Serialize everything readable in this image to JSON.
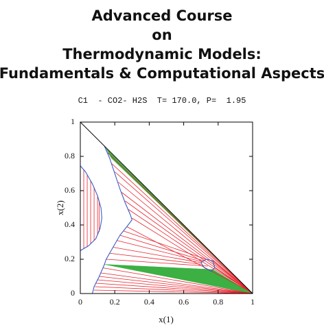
{
  "chart_data": {
    "type": "phase-diagram",
    "title": [
      "Advanced Course",
      "on",
      "Thermodynamic Models:",
      "Fundamentals & Computational Aspects"
    ],
    "subtitle": "C1  - CO2- H2S  T= 170.0, P=  1.95",
    "xlabel": "x(1)",
    "ylabel": "x(2)",
    "xlim": [
      0,
      1
    ],
    "ylim": [
      0,
      1
    ],
    "xticks": [
      0,
      0.2,
      0.4,
      0.6,
      0.8,
      1
    ],
    "yticks": [
      0,
      0.2,
      0.4,
      0.6,
      0.8,
      1
    ],
    "regions": {
      "color": "#3cb043",
      "polygons": [
        {
          "x": [
            0.14,
            0.77,
            1
          ],
          "y": [
            0.17,
            0.14,
            0
          ]
        },
        {
          "x": [
            0.15,
            0.18,
            1
          ],
          "y": [
            0.845,
            0.79,
            0
          ]
        }
      ]
    },
    "tie_lines": {
      "color": "#e8202a",
      "x1": [
        0.02,
        0.04,
        0.06,
        0.08,
        0.1,
        0.11,
        0.16,
        0.18,
        0.2,
        0.22,
        0.24,
        0.26,
        0.28,
        0.3,
        0.27,
        0.25,
        0.23,
        0.21,
        0.19,
        0.17,
        0.15,
        0.13,
        0.12,
        0.11,
        0.1,
        0.09,
        0.085,
        0.08,
        0.78,
        0.77
      ],
      "y1": [
        0.72,
        0.69,
        0.66,
        0.62,
        0.57,
        0.54,
        0.82,
        0.76,
        0.71,
        0.65,
        0.59,
        0.54,
        0.49,
        0.44,
        0.39,
        0.365,
        0.34,
        0.31,
        0.27,
        0.235,
        0.2,
        0.15,
        0.12,
        0.1,
        0.08,
        0.06,
        0.04,
        0.02,
        0.15,
        0.19
      ],
      "x2": [
        0.02,
        0.04,
        0.06,
        0.08,
        0.1,
        0.11,
        0.96,
        0.965,
        0.97,
        0.975,
        0.98,
        0.98,
        0.985,
        0.99,
        0.99,
        0.73,
        0.72,
        0.71,
        0.7,
        0.71,
        0.74,
        1,
        1,
        1,
        1,
        1,
        1,
        1,
        1,
        1
      ],
      "y2": [
        0.26,
        0.27,
        0.29,
        0.31,
        0.34,
        0.36,
        0.04,
        0.035,
        0.03,
        0.025,
        0.02,
        0.02,
        0.015,
        0.01,
        0.01,
        0.2,
        0.19,
        0.185,
        0.18,
        0.17,
        0.16,
        0,
        0,
        0,
        0,
        0,
        0,
        0,
        0,
        0
      ]
    },
    "series": [
      {
        "color": "#3a5bc7",
        "x": [
          0,
          0.03,
          0.07,
          0.1,
          0.12,
          0.125,
          0.115,
          0.09,
          0.05,
          0
        ],
        "y": [
          0.745,
          0.71,
          0.64,
          0.57,
          0.5,
          0.44,
          0.38,
          0.32,
          0.28,
          0.25
        ]
      },
      {
        "color": "#3a5bc7",
        "x": [
          0.14,
          0.17,
          0.2,
          0.23,
          0.26,
          0.29,
          0.3,
          0.27,
          0.23,
          0.19,
          0.15,
          0.14,
          0.11,
          0.08,
          0.07
        ],
        "y": [
          0.86,
          0.79,
          0.7,
          0.61,
          0.53,
          0.46,
          0.43,
          0.39,
          0.34,
          0.27,
          0.2,
          0.17,
          0.1,
          0.04,
          0
        ]
      },
      {
        "color": "#3a5bc7",
        "x": [
          0.7,
          0.73,
          0.77,
          0.78,
          0.76,
          0.72,
          0.7
        ],
        "y": [
          0.18,
          0.2,
          0.19,
          0.15,
          0.13,
          0.15,
          0.18
        ]
      }
    ]
  }
}
